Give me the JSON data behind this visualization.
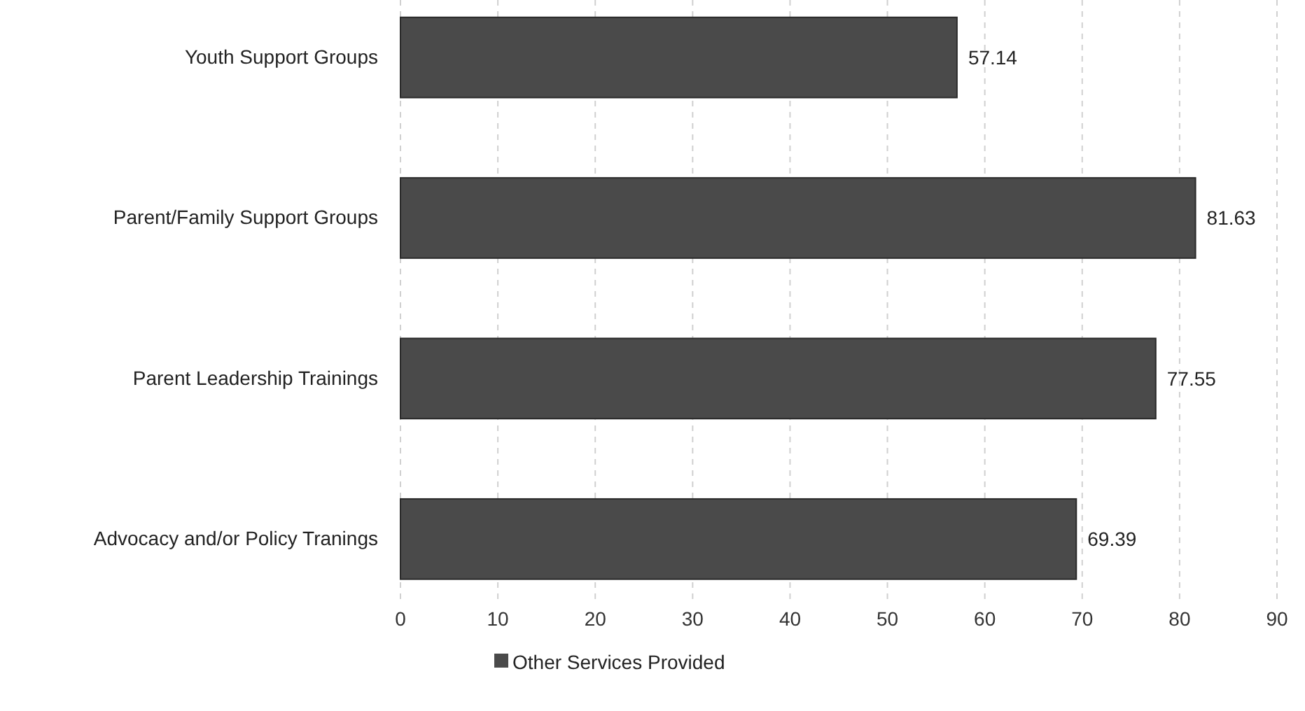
{
  "chart_data": {
    "type": "bar",
    "orientation": "horizontal",
    "categories": [
      "Youth Support Groups",
      "Parent/Family Support Groups",
      "Parent Leadership Trainings",
      "Advocacy and/or Policy Tranings"
    ],
    "series": [
      {
        "name": "Other Services Provided",
        "color": "#4a4a4a",
        "values": [
          57.14,
          81.63,
          77.55,
          69.39
        ]
      }
    ],
    "xlim": [
      0,
      90
    ],
    "xticks": [
      0,
      10,
      20,
      30,
      40,
      50,
      60,
      70,
      80,
      90
    ],
    "grid": "x",
    "data_labels": true,
    "legend": "bottom"
  }
}
